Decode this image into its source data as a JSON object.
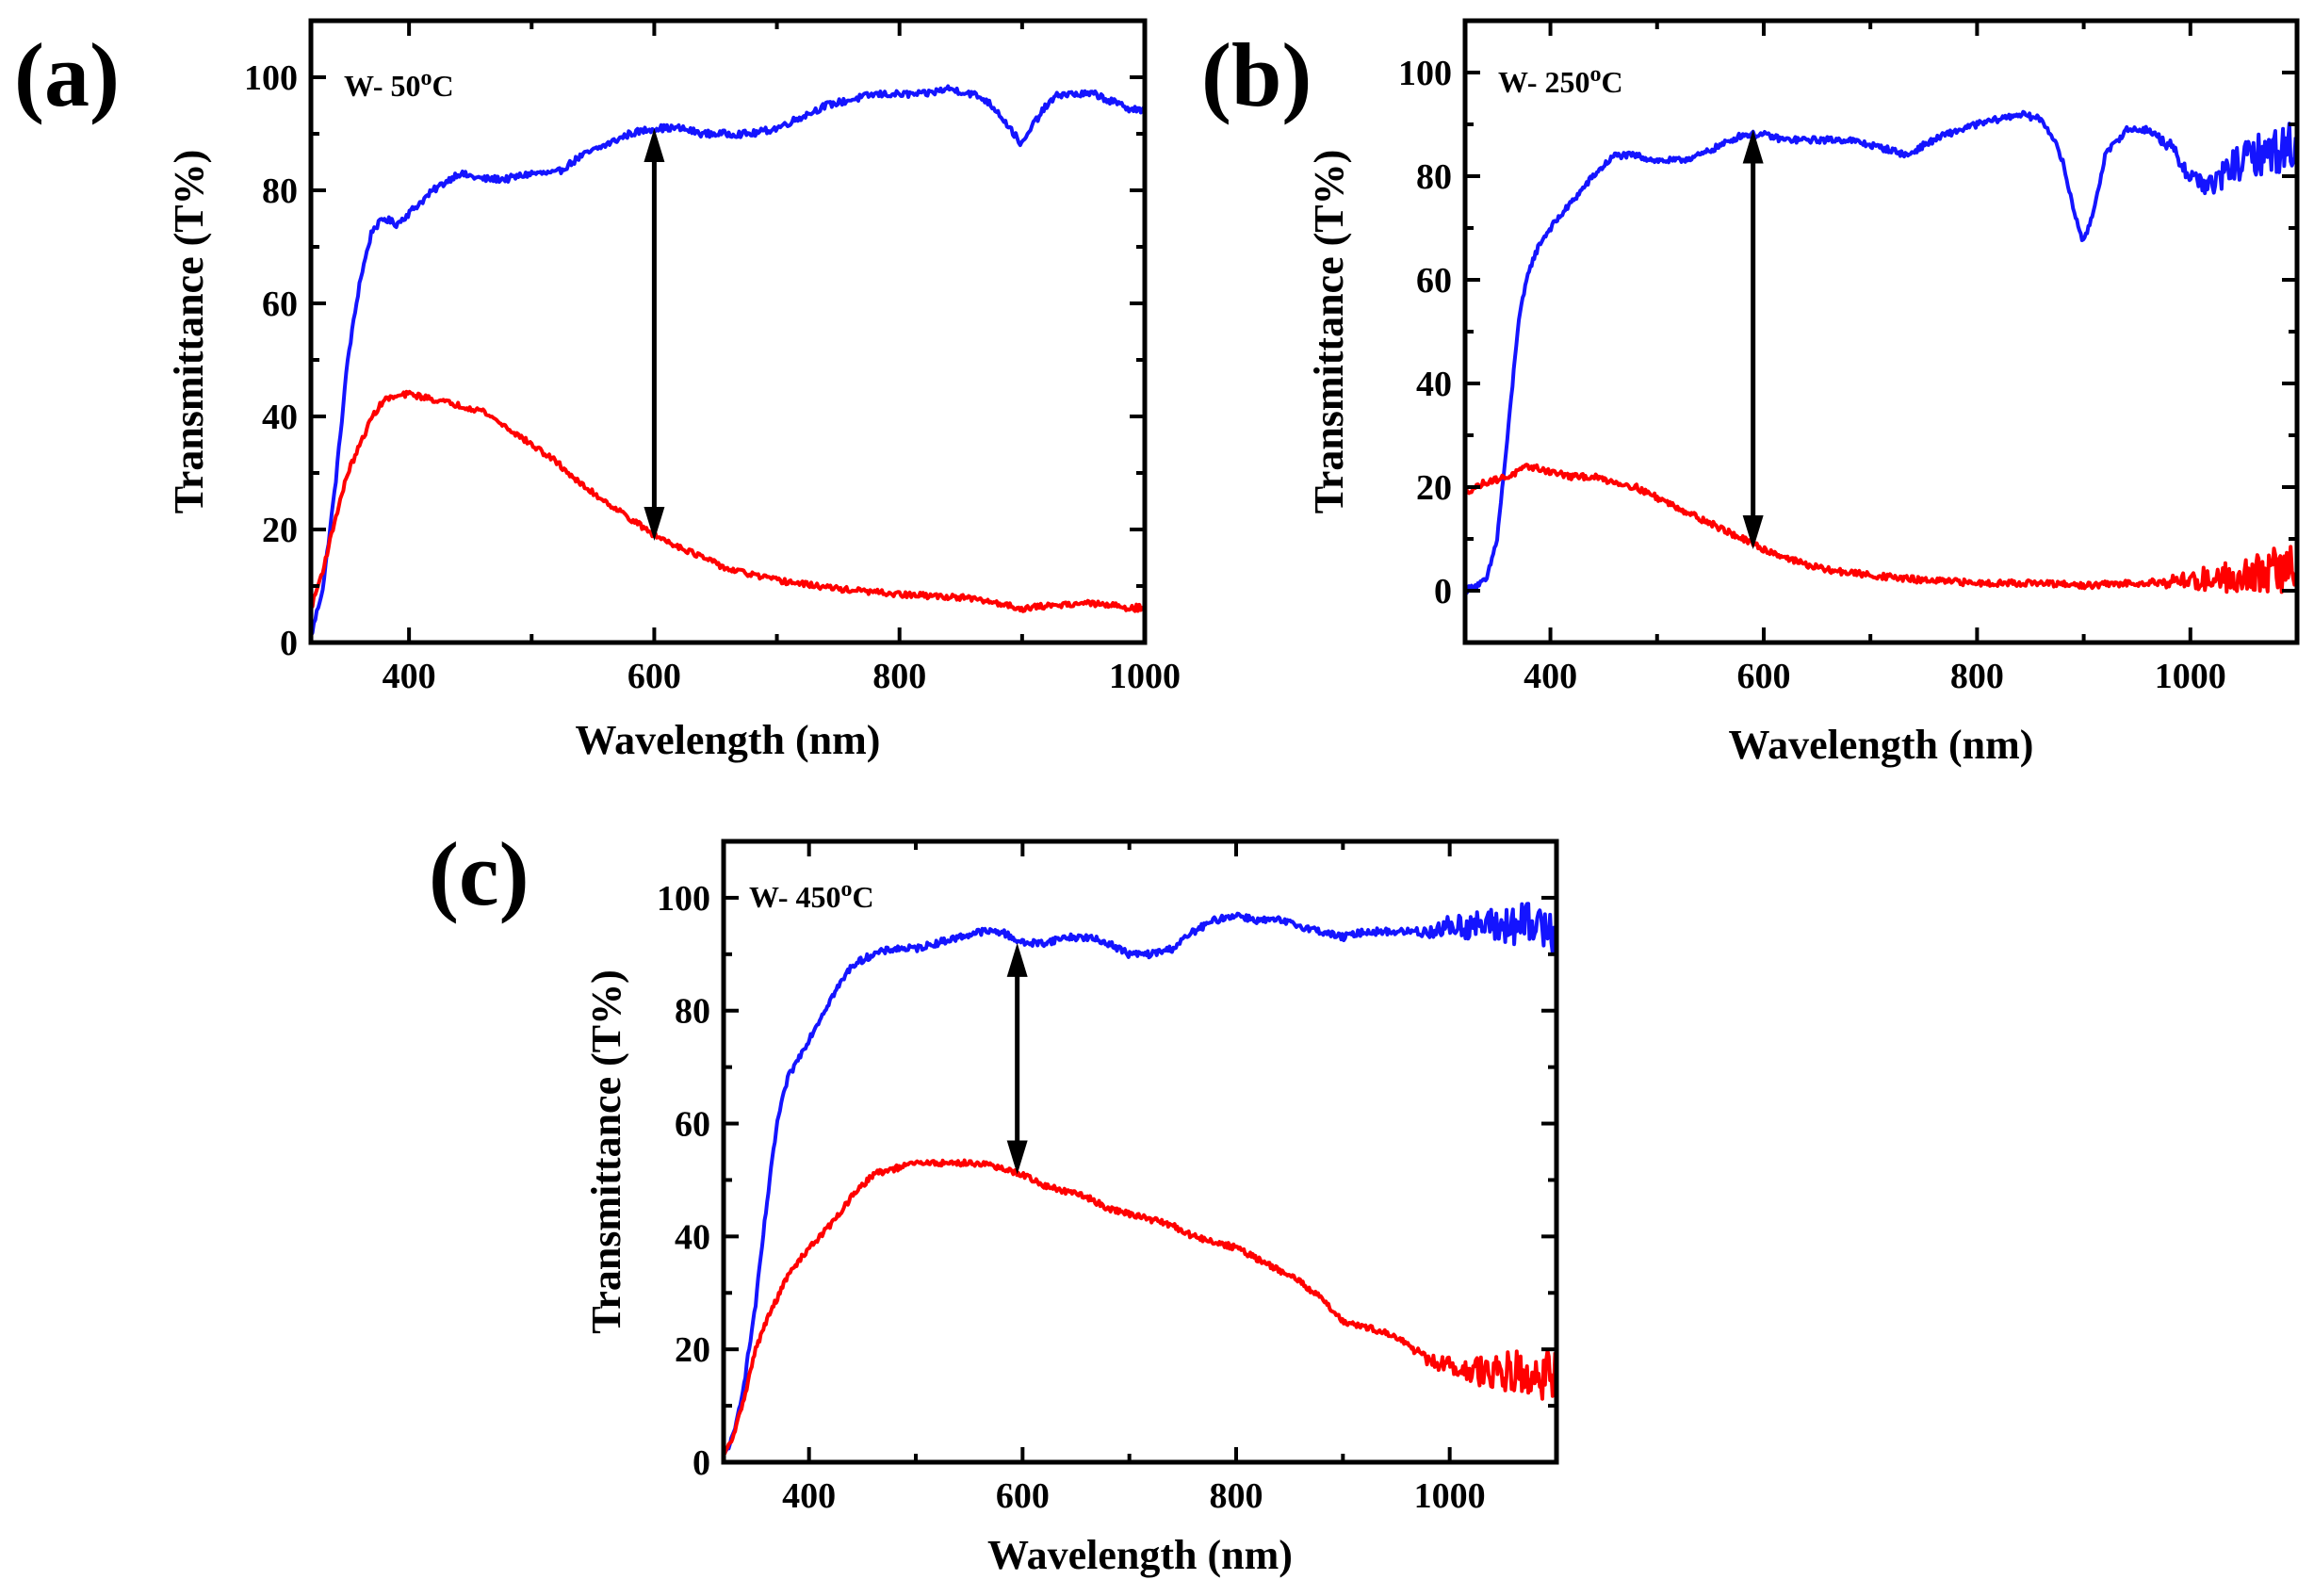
{
  "chart_data": [
    {
      "type": "line",
      "panel_label": "(a)",
      "sample_label_prefix": "W- 50",
      "sample_label_sup": "o",
      "sample_label_suffix": "C",
      "xlabel": "Wavelength (nm)",
      "ylabel": "Transmittance (T%)",
      "xlim": [
        320,
        1000
      ],
      "ylim": [
        0,
        110
      ],
      "xticks": [
        400,
        600,
        800,
        1000
      ],
      "yticks": [
        0,
        20,
        40,
        60,
        80,
        100
      ],
      "arrow": {
        "x": 600,
        "y_from": 18,
        "y_to": 91
      },
      "series": [
        {
          "name": "blue",
          "color": "#1414ff",
          "noise": 0.6,
          "x": [
            320,
            330,
            340,
            350,
            360,
            370,
            380,
            390,
            400,
            420,
            440,
            460,
            480,
            500,
            520,
            540,
            560,
            580,
            600,
            620,
            640,
            660,
            680,
            700,
            720,
            740,
            760,
            780,
            800,
            820,
            840,
            860,
            870,
            880,
            890,
            900,
            910,
            920,
            930,
            940,
            960,
            980,
            1000
          ],
          "y": [
            1,
            10,
            28,
            50,
            64,
            73,
            75,
            74,
            76,
            80,
            83,
            82,
            82,
            83,
            83,
            86,
            88,
            90,
            91,
            91,
            90,
            90,
            90,
            91,
            93,
            95,
            96,
            97,
            97,
            97,
            98,
            97,
            96,
            94,
            91,
            88,
            92,
            95,
            97,
            97,
            97,
            95,
            94
          ]
        },
        {
          "name": "red",
          "color": "#ff0000",
          "noise": 0.5,
          "x": [
            320,
            330,
            340,
            350,
            360,
            370,
            380,
            400,
            420,
            440,
            460,
            480,
            500,
            520,
            540,
            560,
            580,
            600,
            620,
            640,
            660,
            680,
            700,
            750,
            800,
            850,
            880,
            900,
            920,
            950,
            1000
          ],
          "y": [
            6,
            13,
            22,
            30,
            35,
            40,
            43,
            44,
            43,
            42,
            41,
            38,
            35,
            32,
            28,
            25,
            22,
            19,
            17,
            15,
            13,
            12,
            11,
            9.5,
            8.5,
            8,
            7,
            6,
            6.5,
            7,
            6
          ]
        }
      ]
    },
    {
      "type": "line",
      "panel_label": "(b)",
      "sample_label_prefix": "W- 250",
      "sample_label_sup": "o",
      "sample_label_suffix": "C",
      "xlabel": "Wavelength (nm)",
      "ylabel": "Transmittance (T%)",
      "xlim": [
        320,
        1100
      ],
      "ylim": [
        -10,
        110
      ],
      "xticks": [
        400,
        600,
        800,
        1000
      ],
      "yticks": [
        0,
        20,
        40,
        60,
        80,
        100
      ],
      "arrow": {
        "x": 590,
        "y_from": 8,
        "y_to": 89
      },
      "series": [
        {
          "name": "blue",
          "color": "#1414ff",
          "noise": 0.6,
          "x": [
            320,
            340,
            350,
            360,
            370,
            380,
            390,
            400,
            420,
            440,
            460,
            480,
            500,
            520,
            540,
            560,
            580,
            600,
            620,
            640,
            660,
            680,
            700,
            720,
            735,
            750,
            770,
            800,
            820,
            840,
            860,
            870,
            880,
            890,
            900,
            910,
            920,
            940,
            960,
            980,
            1000,
            1020,
            1040,
            1060,
            1080,
            1100
          ],
          "y": [
            0,
            2,
            10,
            30,
            52,
            62,
            67,
            70,
            75,
            80,
            84,
            84,
            83,
            83,
            84,
            86,
            88,
            88,
            87,
            87,
            87,
            87,
            86,
            85,
            84,
            86,
            88,
            90,
            91,
            92,
            91,
            88,
            83,
            74,
            67,
            74,
            84,
            89,
            89,
            86,
            80,
            78,
            82,
            84,
            85,
            86
          ]
        },
        {
          "name": "red",
          "color": "#ff0000",
          "noise": 0.6,
          "x": [
            320,
            340,
            360,
            380,
            400,
            420,
            440,
            460,
            480,
            500,
            520,
            540,
            560,
            580,
            600,
            620,
            640,
            660,
            680,
            700,
            750,
            800,
            850,
            900,
            950,
            1000,
            1050,
            1100
          ],
          "y": [
            19,
            21,
            22,
            24,
            23,
            22,
            22,
            21,
            20,
            18,
            16,
            14,
            12,
            10,
            8,
            6.5,
            5,
            4,
            3.5,
            3,
            2,
            1.5,
            1.5,
            1,
            1.5,
            2,
            3,
            4.5
          ]
        }
      ]
    },
    {
      "type": "line",
      "panel_label": "(c)",
      "sample_label_prefix": "W- 450",
      "sample_label_sup": "o",
      "sample_label_suffix": "C",
      "xlabel": "Wavelength (nm)",
      "ylabel": "Transmittance (T%)",
      "xlim": [
        320,
        1100
      ],
      "ylim": [
        0,
        110
      ],
      "xticks": [
        400,
        600,
        800,
        1000
      ],
      "yticks": [
        0,
        20,
        40,
        60,
        80,
        100
      ],
      "arrow": {
        "x": 595,
        "y_from": 51,
        "y_to": 92
      },
      "series": [
        {
          "name": "blue",
          "color": "#1414ff",
          "noise": 0.6,
          "x": [
            320,
            330,
            340,
            350,
            360,
            370,
            380,
            400,
            420,
            440,
            460,
            480,
            500,
            520,
            540,
            560,
            580,
            600,
            620,
            640,
            660,
            680,
            700,
            720,
            740,
            760,
            780,
            800,
            820,
            840,
            860,
            880,
            900,
            920,
            940,
            960,
            980,
            1000,
            1020,
            1040,
            1060,
            1080,
            1100
          ],
          "y": [
            1,
            5,
            15,
            28,
            45,
            60,
            68,
            75,
            82,
            88,
            90,
            91,
            91,
            92,
            93,
            94,
            94,
            92,
            92,
            93,
            93,
            92,
            90,
            90,
            91,
            94,
            96,
            97,
            96,
            96,
            95,
            94,
            93,
            94,
            94,
            94,
            94,
            95,
            95,
            95,
            95,
            95,
            95
          ]
        },
        {
          "name": "red",
          "color": "#ff0000",
          "noise": 0.5,
          "x": [
            320,
            330,
            340,
            350,
            360,
            370,
            380,
            400,
            420,
            440,
            460,
            480,
            500,
            520,
            540,
            560,
            580,
            600,
            620,
            640,
            660,
            680,
            700,
            720,
            740,
            760,
            780,
            800,
            820,
            840,
            860,
            880,
            900,
            920,
            940,
            960,
            980,
            1000,
            1020,
            1040,
            1060,
            1080,
            1100
          ],
          "y": [
            1,
            5,
            12,
            20,
            25,
            29,
            33,
            38,
            42,
            47,
            51,
            52,
            53,
            53,
            53,
            53,
            52,
            51,
            49,
            48,
            47,
            45,
            44,
            43,
            42,
            40,
            39,
            38,
            36,
            34,
            32,
            29,
            25,
            24,
            23,
            21,
            18,
            17,
            16,
            16,
            16,
            16,
            15
          ]
        }
      ]
    }
  ]
}
